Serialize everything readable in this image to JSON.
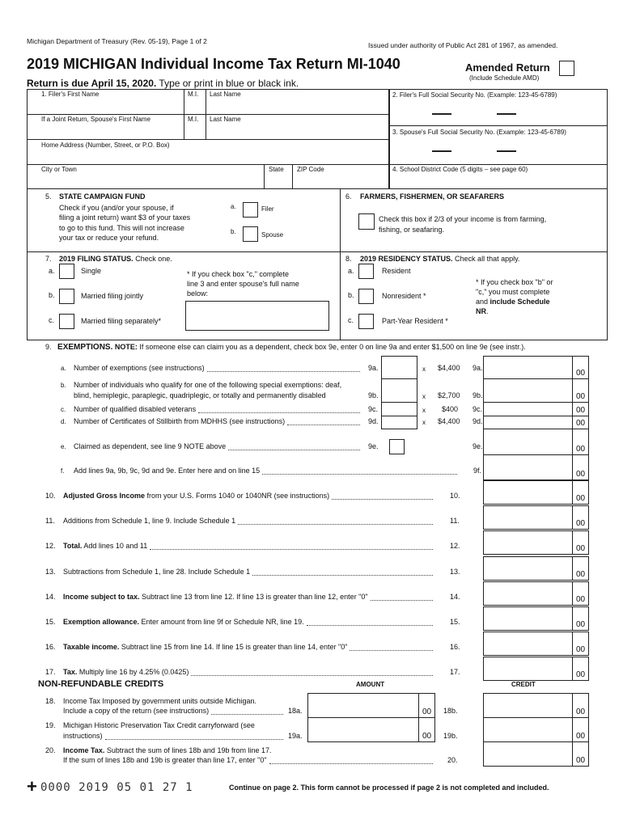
{
  "header": {
    "dept": "Michigan Department of Treasury (Rev. 05-19), Page 1 of 2",
    "authority": "Issued under authority of Public Act 281 of 1967, as amended.",
    "title": "2019 MICHIGAN Individual Income Tax Return MI-1040",
    "amended_label": "Amended Return",
    "amended_note": "(Include Schedule AMD)",
    "due_bold": "Return is due April 15, 2020.",
    "due_rest": " Type or print in blue or black ink."
  },
  "ident": {
    "filer_first": "1. Filer's First Name",
    "mi": "M.I.",
    "last": "Last Name",
    "spouse_first": "If a Joint Return, Spouse's First Name",
    "address": "Home Address (Number, Street, or P.O. Box)",
    "city": "City or Town",
    "state": "State",
    "zip": "ZIP Code",
    "ssn_filer": "2. Filer's Full Social Security No. (Example: 123-45-6789)",
    "ssn_spouse": "3. Spouse's Full Social Security No. (Example: 123-45-6789)",
    "school": "4. School District Code (5 digits – see page 60)"
  },
  "campaign": {
    "num": "5.",
    "title": "STATE CAMPAIGN FUND",
    "text": [
      "Check if you (and/or your spouse, if",
      "filing a joint return) want $3 of your taxes",
      "to go to this fund. This will not increase",
      "your tax or reduce your refund."
    ],
    "a": "a.",
    "filer": "Filer",
    "b": "b.",
    "spouse": "Spouse"
  },
  "farmers": {
    "num": "6.",
    "title": "FARMERS, FISHERMEN, OR SEAFARERS",
    "text": [
      "Check this box if 2/3 of your income is from farming,",
      "fishing, or seafaring."
    ]
  },
  "filing": {
    "num": "7.",
    "title": "2019 FILING STATUS.",
    "title_rest": " Check one.",
    "options": [
      {
        "letter": "a.",
        "label": "Single"
      },
      {
        "letter": "b.",
        "label": "Married filing jointly"
      },
      {
        "letter": "c.",
        "label": "Married filing separately*"
      }
    ],
    "note": [
      "* If you check box \"c,\" complete",
      "line 3 and enter spouse's full name",
      "below:"
    ]
  },
  "residency": {
    "num": "8.",
    "title": "2019 RESIDENCY STATUS.",
    "title_rest": " Check all that apply.",
    "options": [
      {
        "letter": "a.",
        "label": "Resident"
      },
      {
        "letter": "b.",
        "label": "Nonresident *"
      },
      {
        "letter": "c.",
        "label": "Part-Year Resident *"
      }
    ],
    "note": [
      "* If you check box \"b\" or",
      "\"c,\" you must complete",
      "and ",
      "include Schedule",
      "NR",
      "."
    ]
  },
  "exemptions": {
    "num": "9.",
    "title": "EXEMPTIONS.",
    "note_bold": "NOTE:",
    "note": " If someone else can claim you as a dependent, check box 9e, enter 0 on line 9a and enter $1,500 on line 9e (see instr.).",
    "lines": [
      {
        "letter": "a.",
        "text": "Number of exemptions (see instructions)",
        "code": "9a.",
        "rate": "$4,400",
        "cents": "00"
      },
      {
        "letter": "b.",
        "text": "Number of individuals who qualify for one of the following special exemptions: deaf,",
        "text2": "blind, hemiplegic, paraplegic, quadriplegic, or totally and permanently disabled",
        "code": "9b.",
        "rate": "$2,700",
        "cents": "00"
      },
      {
        "letter": "c.",
        "text": "Number of qualified disabled veterans",
        "code": "9c.",
        "rate": "$400",
        "cents": "00"
      },
      {
        "letter": "d.",
        "text": "Number of Certificates of Stillbirth from MDHHS (see instructions)",
        "code": "9d.",
        "rate": "$4,400",
        "cents": "00"
      },
      {
        "letter": "e.",
        "text": "Claimed as dependent, see line 9 NOTE above",
        "code": "9e.",
        "cents": "00"
      },
      {
        "letter": "f.",
        "text": "Add lines 9a, 9b, 9c, 9d and 9e.  Enter here and on line 15",
        "code": "9f.",
        "cents": "00"
      }
    ],
    "times": "x"
  },
  "lines": [
    {
      "num": "10.",
      "bold": "Adjusted Gross Income",
      "text": " from your U.S. Forms 1040 or 1040NR (see instructions)",
      "code": "10.",
      "cents": "00"
    },
    {
      "num": "11.",
      "bold": "",
      "text": "Additions from Schedule 1, line 9. Include Schedule 1",
      "code": "11.",
      "cents": "00"
    },
    {
      "num": "12.",
      "bold": "Total.",
      "text": " Add lines 10 and 11",
      "code": "12.",
      "cents": "00"
    },
    {
      "num": "13.",
      "bold": "",
      "text": "Subtractions from Schedule 1, line 28.  Include Schedule 1",
      "code": "13.",
      "cents": "00"
    },
    {
      "num": "14.",
      "bold": "Income subject to tax.",
      "text": " Subtract line 13 from line 12.  If line 13 is greater than line 12, enter \"0\"",
      "code": "14.",
      "cents": "00"
    },
    {
      "num": "15.",
      "bold": "Exemption allowance.",
      "text": " Enter amount from line 9f or Schedule NR, line 19.",
      "code": "15.",
      "cents": "00"
    },
    {
      "num": "16.",
      "bold": "Taxable income.",
      "text": " Subtract line 15 from line 14.  If line 15 is greater than line 14, enter \"0\"",
      "code": "16.",
      "cents": "00"
    },
    {
      "num": "17.",
      "bold": "Tax.",
      "text": " Multiply line 16 by 4.25% (0.0425)",
      "code": "17.",
      "cents": "00"
    }
  ],
  "credits": {
    "title": "NON-REFUNDABLE CREDITS",
    "amount_header": "AMOUNT",
    "credit_header": "CREDIT",
    "lines": [
      {
        "num": "18.",
        "text": "Income Tax Imposed by government units outside Michigan.",
        "text2": "Include a copy of the return (see instructions)",
        "code_a": "18a.",
        "code_b": "18b.",
        "cents": "00"
      },
      {
        "num": "19.",
        "text": "Michigan Historic Preservation Tax Credit carryforward (see",
        "text2": "instructions)",
        "code_a": "19a.",
        "code_b": "19b.",
        "cents": "00"
      },
      {
        "num": "20.",
        "bold": "Income Tax.",
        "text": " Subtract the sum of lines 18b and 19b from line 17.",
        "text2": "If the sum of lines 18b and 19b is greater than line 17, enter \"0\"",
        "code_b": "20.",
        "cents": "00"
      }
    ]
  },
  "footer": {
    "plus": "+",
    "code": "0000 2019 05 01 27 1",
    "continue": "Continue on page 2. This form cannot be processed if page 2 is not completed and included."
  }
}
